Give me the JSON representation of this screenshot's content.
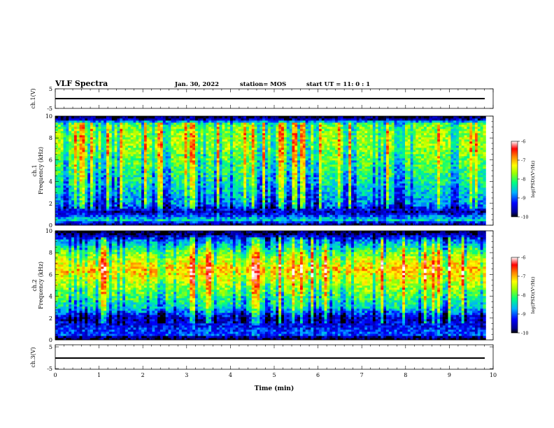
{
  "header": {
    "title": "VLF Spectra",
    "date": "Jan. 30, 2022",
    "station": "station= MOS",
    "start": "start  UT =   11: 0  : 1"
  },
  "chart_data": [
    {
      "type": "line",
      "panel": "ch1-waveform",
      "ylabel": "ch.1(V)",
      "ylim": [
        -5,
        5
      ],
      "yticks": [
        "5",
        "-5"
      ],
      "series": [
        {
          "x": [
            0,
            9.83
          ],
          "y": [
            0,
            0
          ]
        }
      ]
    },
    {
      "type": "heatmap",
      "panel": "ch1-spectrogram",
      "ylabel_lines": [
        "ch.1",
        "Frequency (kHz)"
      ],
      "ylim": [
        0,
        10
      ],
      "yticks": [
        "0",
        "2",
        "4",
        "6",
        "8",
        "10"
      ],
      "xlim": [
        0,
        10
      ],
      "data_extent_min": 9.83,
      "colorbar": {
        "label": "log(PSD)(V²/Hz)",
        "range": [
          -10,
          -6
        ],
        "ticks": [
          "-6",
          "-7",
          "-8",
          "-9",
          "-10"
        ]
      },
      "profile": [
        {
          "f": 0.2,
          "level": -9.6
        },
        {
          "f": 0.5,
          "level": -8.4
        },
        {
          "f": 1.2,
          "level": -9.6
        },
        {
          "f": 1.6,
          "level": -9.2
        },
        {
          "f": 2.0,
          "level": -8.8
        },
        {
          "f": 4.0,
          "level": -8.3
        },
        {
          "f": 6.0,
          "level": -7.9
        },
        {
          "f": 8.0,
          "level": -7.6
        },
        {
          "f": 9.3,
          "level": -7.9
        },
        {
          "f": 9.8,
          "level": -9.9
        }
      ]
    },
    {
      "type": "heatmap",
      "panel": "ch2-spectrogram",
      "ylabel_lines": [
        "ch.2",
        "Frequency (kHz)"
      ],
      "ylim": [
        0,
        10
      ],
      "yticks": [
        "0",
        "2",
        "4",
        "6",
        "8",
        "10"
      ],
      "xlim": [
        0,
        10
      ],
      "data_extent_min": 9.83,
      "colorbar": {
        "label": "log(PSD)(V²/Hz)",
        "range": [
          -10,
          -6
        ],
        "ticks": [
          "-6",
          "-7",
          "-8",
          "-9",
          "-10"
        ]
      },
      "profile": [
        {
          "f": 0.2,
          "level": -9.9
        },
        {
          "f": 0.5,
          "level": -9.0
        },
        {
          "f": 1.2,
          "level": -9.3
        },
        {
          "f": 2.0,
          "level": -9.5
        },
        {
          "f": 3.0,
          "level": -8.4
        },
        {
          "f": 5.0,
          "level": -7.6
        },
        {
          "f": 6.5,
          "level": -7.0
        },
        {
          "f": 8.0,
          "level": -7.8
        },
        {
          "f": 9.2,
          "level": -8.9
        },
        {
          "f": 9.8,
          "level": -9.9
        }
      ]
    },
    {
      "type": "line",
      "panel": "ch3-waveform",
      "ylabel": "ch.3(V)",
      "ylim": [
        -5,
        5
      ],
      "yticks": [
        "5",
        "-5"
      ],
      "xlabel": "Time  (min)",
      "xticks": [
        "0",
        "1",
        "2",
        "3",
        "4",
        "5",
        "6",
        "7",
        "8",
        "9",
        "10"
      ],
      "series": [
        {
          "x": [
            0,
            9.83
          ],
          "y": [
            0,
            0
          ]
        }
      ]
    }
  ]
}
